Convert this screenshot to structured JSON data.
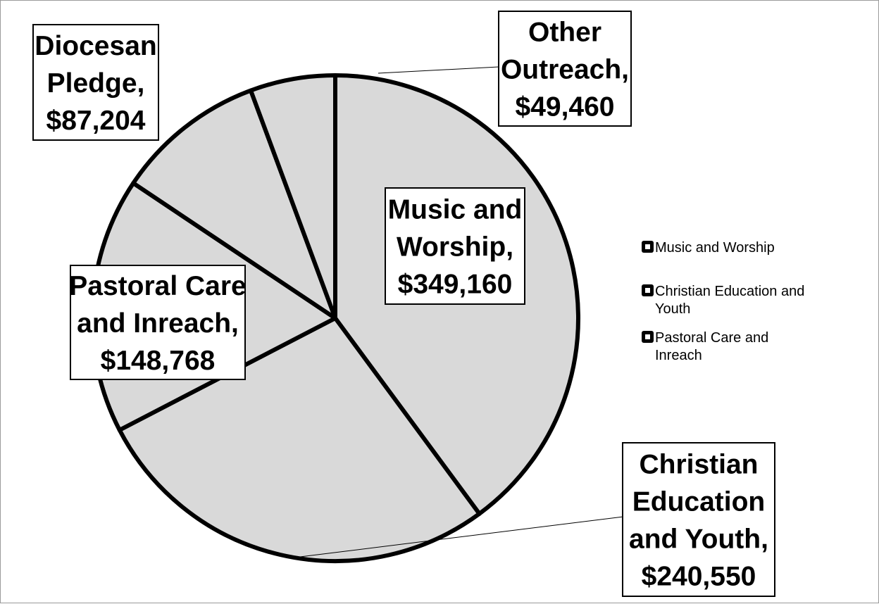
{
  "chart_data": {
    "type": "pie",
    "categories": [
      "Music and Worship",
      "Christian Education and Youth",
      "Pastoral Care and Inreach",
      "Diocesan Pledge",
      "Other Outreach"
    ],
    "values": [
      349160,
      240550,
      148768,
      87204,
      49460
    ],
    "data_labels": [
      [
        "Music and",
        "Worship,",
        "$349,160"
      ],
      [
        "Christian",
        "Education",
        "and Youth,",
        "$240,550"
      ],
      [
        "Pastoral Care",
        "and Inreach,",
        "$148,768"
      ],
      [
        "Diocesan",
        "Pledge,",
        "$87,204"
      ],
      [
        "Other",
        "Outreach,",
        "$49,460"
      ]
    ],
    "legend": {
      "placement": "right",
      "entries": [
        [
          "Music and Worship"
        ],
        [
          "Christian Education and",
          "Youth"
        ],
        [
          "Pastoral Care and",
          "Inreach"
        ]
      ]
    },
    "colors": {
      "slice_fill": "#d9d9d9",
      "slice_stroke": "#000000",
      "label_border": "#000000"
    }
  }
}
